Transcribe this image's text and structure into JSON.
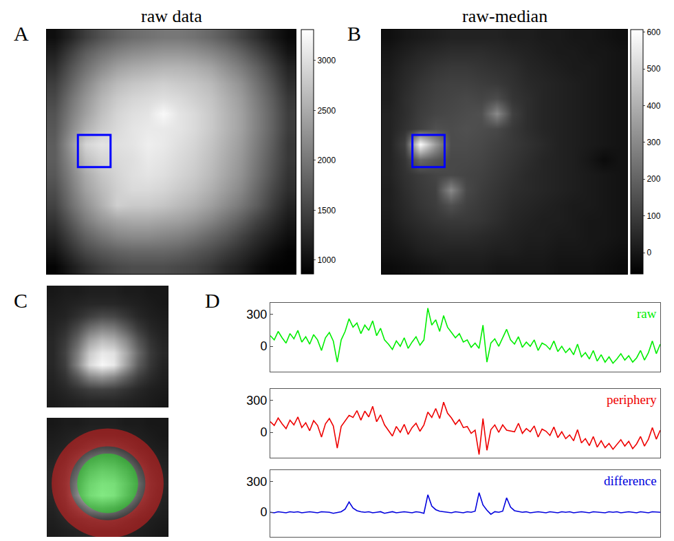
{
  "chart_data": [
    {
      "label": "A",
      "type": "heatmap",
      "title": "raw data",
      "tick_labels": false,
      "color": "#0000ff",
      "roi": {
        "x": [
          1.5,
          3.6
        ],
        "y": [
          6.4,
          8.5
        ]
      },
      "zlim": [
        862,
        3310
      ],
      "zticks": [
        1000,
        1500,
        2000,
        2500,
        3000
      ],
      "z": [
        [
          1000,
          1200,
          1450,
          1650,
          1800,
          1900,
          1950,
          2000,
          2000,
          1950,
          1850,
          1700,
          1500,
          1300,
          1100,
          950
        ],
        [
          1150,
          1450,
          1750,
          1950,
          2100,
          2200,
          2250,
          2300,
          2300,
          2250,
          2150,
          2000,
          1800,
          1550,
          1300,
          1050
        ],
        [
          1300,
          1650,
          1950,
          2200,
          2400,
          2500,
          2550,
          2600,
          2600,
          2550,
          2450,
          2250,
          2050,
          1800,
          1500,
          1200
        ],
        [
          1450,
          1800,
          2150,
          2450,
          2650,
          2750,
          2800,
          2850,
          2800,
          2750,
          2650,
          2450,
          2250,
          1950,
          1650,
          1300
        ],
        [
          1550,
          1950,
          2300,
          2600,
          2800,
          2900,
          2950,
          3000,
          2950,
          2850,
          2750,
          2550,
          2350,
          2050,
          1750,
          1400
        ],
        [
          1650,
          2050,
          2400,
          2700,
          2900,
          3000,
          3050,
          3250,
          3050,
          2950,
          2800,
          2600,
          2400,
          2100,
          1800,
          1450
        ],
        [
          1700,
          2150,
          2550,
          2800,
          2950,
          3050,
          3100,
          3100,
          3050,
          2950,
          2800,
          2600,
          2400,
          2100,
          1800,
          1450
        ],
        [
          1750,
          2300,
          2900,
          3050,
          3000,
          3050,
          3150,
          3100,
          3000,
          2900,
          2750,
          2550,
          2350,
          2050,
          1750,
          1400
        ],
        [
          1750,
          2200,
          2700,
          2900,
          2950,
          3000,
          3100,
          3050,
          2950,
          2850,
          2700,
          2500,
          2300,
          2000,
          1700,
          1400
        ],
        [
          1700,
          2100,
          2500,
          2750,
          2900,
          3000,
          3050,
          3000,
          2900,
          2800,
          2650,
          2450,
          2250,
          1950,
          1650,
          1350
        ],
        [
          1600,
          2000,
          2400,
          2650,
          2850,
          2950,
          2950,
          2900,
          2800,
          2700,
          2550,
          2350,
          2150,
          1850,
          1550,
          1300
        ],
        [
          1500,
          1900,
          2250,
          2550,
          2850,
          2800,
          2800,
          2750,
          2650,
          2550,
          2400,
          2200,
          2000,
          1750,
          1450,
          1200
        ],
        [
          1350,
          1700,
          2050,
          2300,
          2450,
          2500,
          2500,
          2450,
          2400,
          2300,
          2150,
          1950,
          1750,
          1500,
          1300,
          1100
        ],
        [
          1200,
          1500,
          1800,
          2000,
          2150,
          2200,
          2200,
          2150,
          2100,
          2000,
          1850,
          1700,
          1500,
          1300,
          1150,
          1000
        ],
        [
          1050,
          1300,
          1550,
          1700,
          1800,
          1850,
          1850,
          1850,
          1800,
          1700,
          1600,
          1450,
          1300,
          1150,
          1000,
          900
        ],
        [
          900,
          1100,
          1300,
          1450,
          1550,
          1600,
          1600,
          1600,
          1550,
          1500,
          1400,
          1250,
          1150,
          1000,
          900,
          880
        ]
      ]
    },
    {
      "label": "B",
      "type": "heatmap",
      "title": "raw-median",
      "tick_labels": false,
      "color": "#0000ff",
      "roi": {
        "x": [
          1.5,
          3.6
        ],
        "y": [
          6.4,
          8.5
        ]
      },
      "zlim": [
        -58,
        607
      ],
      "zticks": [
        0,
        100,
        200,
        300,
        400,
        500,
        600
      ],
      "z": [
        [
          -20,
          0,
          10,
          20,
          30,
          30,
          30,
          30,
          20,
          20,
          10,
          10,
          0,
          0,
          -10,
          -20
        ],
        [
          0,
          20,
          40,
          50,
          60,
          60,
          60,
          50,
          40,
          30,
          20,
          10,
          10,
          0,
          0,
          -10
        ],
        [
          10,
          40,
          60,
          80,
          90,
          90,
          80,
          70,
          60,
          40,
          30,
          20,
          10,
          10,
          0,
          -10
        ],
        [
          20,
          50,
          80,
          100,
          110,
          110,
          100,
          90,
          70,
          50,
          40,
          30,
          20,
          10,
          0,
          -10
        ],
        [
          20,
          60,
          90,
          110,
          120,
          130,
          120,
          140,
          80,
          60,
          40,
          30,
          20,
          10,
          0,
          -10
        ],
        [
          30,
          60,
          100,
          120,
          130,
          140,
          150,
          300,
          110,
          60,
          40,
          30,
          20,
          10,
          0,
          -10
        ],
        [
          30,
          70,
          110,
          150,
          140,
          150,
          140,
          130,
          90,
          60,
          40,
          30,
          20,
          10,
          0,
          -10
        ],
        [
          30,
          110,
          600,
          350,
          140,
          140,
          130,
          110,
          90,
          70,
          50,
          30,
          20,
          10,
          0,
          -10
        ],
        [
          30,
          80,
          220,
          170,
          130,
          130,
          120,
          100,
          80,
          60,
          40,
          30,
          20,
          0,
          -30,
          -10
        ],
        [
          30,
          70,
          100,
          120,
          130,
          120,
          110,
          90,
          70,
          50,
          40,
          30,
          20,
          10,
          0,
          -10
        ],
        [
          20,
          60,
          90,
          110,
          300,
          130,
          100,
          80,
          60,
          50,
          40,
          30,
          20,
          10,
          0,
          -10
        ],
        [
          20,
          50,
          80,
          100,
          150,
          110,
          90,
          70,
          50,
          40,
          30,
          20,
          10,
          10,
          0,
          -10
        ],
        [
          10,
          40,
          60,
          80,
          90,
          90,
          80,
          60,
          40,
          30,
          20,
          20,
          10,
          0,
          0,
          -10
        ],
        [
          0,
          20,
          40,
          50,
          60,
          60,
          50,
          40,
          30,
          20,
          20,
          10,
          10,
          0,
          0,
          -10
        ],
        [
          -10,
          0,
          20,
          30,
          30,
          30,
          30,
          20,
          20,
          10,
          10,
          0,
          0,
          0,
          -10,
          -20
        ],
        [
          -30,
          -20,
          -10,
          0,
          10,
          10,
          10,
          0,
          0,
          0,
          0,
          -10,
          -10,
          -10,
          -20,
          -30
        ]
      ]
    },
    {
      "label": "C",
      "type": "image_pair",
      "tick_labels": false,
      "colors": [
        "#22dd22",
        "#e02020"
      ],
      "zlim": [
        -40,
        620
      ],
      "z": [
        [
          20,
          30,
          30,
          40,
          40,
          40,
          30,
          30,
          20,
          20
        ],
        [
          30,
          40,
          50,
          60,
          60,
          60,
          50,
          40,
          30,
          20
        ],
        [
          40,
          50,
          80,
          120,
          150,
          140,
          100,
          60,
          40,
          30
        ],
        [
          50,
          80,
          150,
          250,
          300,
          280,
          200,
          110,
          60,
          40
        ],
        [
          60,
          110,
          220,
          380,
          450,
          420,
          320,
          180,
          90,
          50
        ],
        [
          60,
          130,
          280,
          480,
          560,
          540,
          400,
          230,
          110,
          60
        ],
        [
          60,
          120,
          300,
          520,
          600,
          560,
          380,
          200,
          100,
          50
        ],
        [
          50,
          90,
          180,
          300,
          340,
          300,
          210,
          120,
          70,
          40
        ],
        [
          40,
          60,
          90,
          120,
          130,
          120,
          90,
          60,
          40,
          30
        ],
        [
          30,
          40,
          50,
          60,
          60,
          60,
          50,
          40,
          30,
          20
        ]
      ]
    },
    {
      "label": "D",
      "type": "line",
      "tick_labels": "y",
      "xlim": [
        0,
        99
      ],
      "ylim": [
        -240,
        410
      ],
      "yticks": [
        0,
        300
      ],
      "series": [
        {
          "name": "raw",
          "color": "#00ee00",
          "values": [
            100,
            60,
            140,
            80,
            30,
            120,
            70,
            150,
            40,
            90,
            20,
            110,
            60,
            -40,
            80,
            130,
            50,
            -150,
            60,
            140,
            260,
            180,
            220,
            120,
            200,
            150,
            240,
            100,
            170,
            60,
            20,
            -30,
            50,
            0,
            80,
            -20,
            40,
            90,
            10,
            60,
            360,
            200,
            250,
            140,
            290,
            180,
            130,
            80,
            120,
            40,
            60,
            -10,
            30,
            -20,
            200,
            -150,
            30,
            70,
            0,
            80,
            160,
            60,
            20,
            90,
            -10,
            40,
            0,
            60,
            -40,
            30,
            10,
            -30,
            50,
            -50,
            0,
            -60,
            -20,
            -80,
            20,
            -100,
            -60,
            -120,
            -40,
            -140,
            -80,
            -150,
            -100,
            -160,
            -120,
            -70,
            -130,
            -90,
            -150,
            -110,
            -40,
            -130,
            -60,
            50,
            -70,
            20
          ]
        },
        {
          "name": "periphery",
          "color": "#ee0000",
          "values": [
            100,
            65,
            135,
            80,
            35,
            115,
            70,
            145,
            45,
            90,
            15,
            110,
            65,
            -45,
            80,
            130,
            60,
            -150,
            55,
            110,
            160,
            140,
            205,
            115,
            200,
            145,
            245,
            100,
            165,
            70,
            20,
            -35,
            55,
            0,
            75,
            -20,
            45,
            85,
            10,
            70,
            190,
            140,
            225,
            130,
            285,
            180,
            135,
            75,
            120,
            45,
            55,
            -10,
            20,
            -210,
            130,
            -170,
            25,
            70,
            0,
            70,
            20,
            10,
            5,
            85,
            -10,
            35,
            5,
            60,
            -45,
            30,
            10,
            -30,
            50,
            -50,
            5,
            -60,
            -25,
            -80,
            25,
            -100,
            -60,
            -125,
            -40,
            -140,
            -80,
            -145,
            -105,
            -160,
            -115,
            -70,
            -130,
            -85,
            -155,
            -110,
            -40,
            -130,
            -65,
            45,
            -65,
            20
          ]
        },
        {
          "name": "difference",
          "color": "#0000dd",
          "values": [
            0,
            -5,
            5,
            0,
            -5,
            5,
            0,
            5,
            -5,
            0,
            5,
            0,
            -5,
            5,
            0,
            0,
            -10,
            0,
            5,
            30,
            100,
            40,
            15,
            5,
            0,
            5,
            -5,
            0,
            5,
            -10,
            0,
            5,
            -5,
            0,
            5,
            0,
            -5,
            5,
            0,
            -10,
            170,
            60,
            25,
            10,
            5,
            0,
            -5,
            5,
            0,
            -5,
            5,
            0,
            10,
            190,
            70,
            20,
            -20,
            5,
            0,
            10,
            140,
            50,
            15,
            5,
            0,
            5,
            -5,
            0,
            5,
            0,
            -5,
            5,
            0,
            -5,
            5,
            0,
            5,
            -5,
            0,
            5,
            0,
            -5,
            5,
            0,
            0,
            -5,
            5,
            0,
            5,
            -5,
            0,
            5,
            0,
            -5,
            5,
            0,
            -5,
            5,
            0,
            0
          ]
        }
      ]
    }
  ]
}
